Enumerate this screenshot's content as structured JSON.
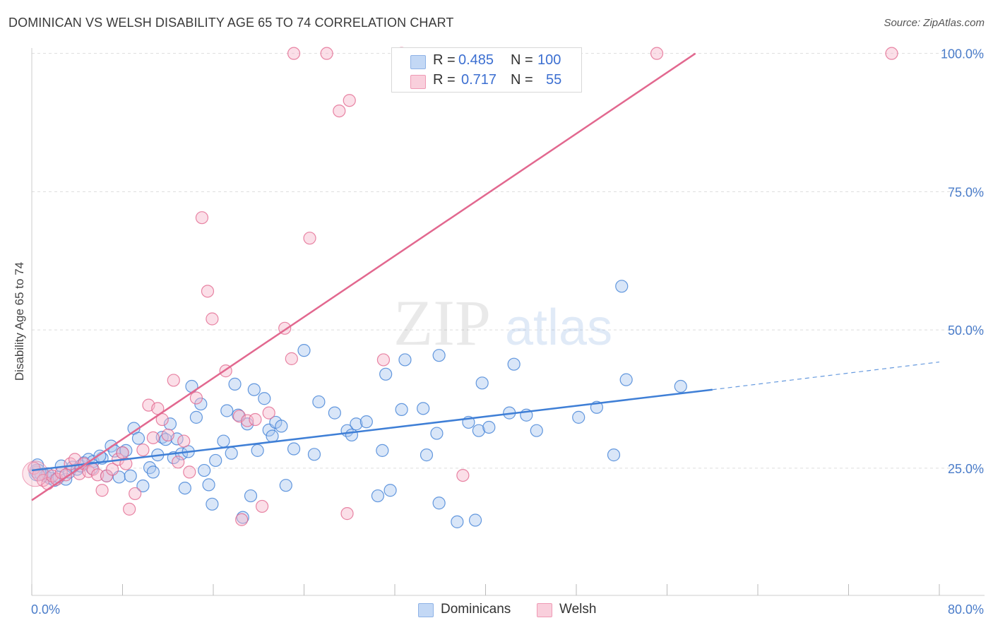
{
  "title": "DOMINICAN VS WELSH DISABILITY AGE 65 TO 74 CORRELATION CHART",
  "source": "Source: ZipAtlas.com",
  "watermark": {
    "zip": "ZIP",
    "atlas": "atlas"
  },
  "colors": {
    "blue": "#3f7fd6",
    "blue_fill": "#aac8f0",
    "pink": "#e2688f",
    "pink_fill": "#f6b9cc",
    "tick": "#4a7cc9",
    "grid": "#dddddd"
  },
  "legend": {
    "rows": [
      {
        "r_label": "R =",
        "r_value": "0.485",
        "n_label": "N =",
        "n_value": "100"
      },
      {
        "r_label": "R =",
        "r_value": "0.717",
        "n_label": "N =",
        "n_value": "55"
      }
    ]
  },
  "bottom_legend": {
    "dominicans": "Dominicans",
    "welsh": "Welsh"
  },
  "chart_data": {
    "type": "scatter",
    "title": "DOMINICAN VS WELSH DISABILITY AGE 65 TO 74 CORRELATION CHART",
    "xlabel": "",
    "ylabel": "Disability Age 65 to 74",
    "xlim": [
      0,
      80
    ],
    "ylim": [
      2,
      102
    ],
    "x_tick_labels": [
      "0.0%",
      "80.0%"
    ],
    "y_ticks": [
      25,
      50,
      75,
      100
    ],
    "y_tick_labels": [
      "25.0%",
      "50.0%",
      "75.0%",
      "100.0%"
    ],
    "grid": true,
    "legend_position": "top-center",
    "series": [
      {
        "name": "Dominicans",
        "color": "#3f7fd6",
        "r": 0.485,
        "n": 100,
        "trend": {
          "x": [
            0,
            60
          ],
          "y": [
            24.6,
            39.2
          ],
          "dashed_to": [
            80,
            44.2
          ]
        },
        "points": [
          [
            0.4,
            24.3
          ],
          [
            0.8,
            23.9
          ],
          [
            1.2,
            23.6
          ],
          [
            1.6,
            23.2
          ],
          [
            2.0,
            22.8
          ],
          [
            2.4,
            23.4
          ],
          [
            2.6,
            25.4
          ],
          [
            3.0,
            23.0
          ],
          [
            3.3,
            24.3
          ],
          [
            3.6,
            25.2
          ],
          [
            4.0,
            24.8
          ],
          [
            4.3,
            25.4
          ],
          [
            4.6,
            26.0
          ],
          [
            5.0,
            26.6
          ],
          [
            5.4,
            26.2
          ],
          [
            6.2,
            26.8
          ],
          [
            6.6,
            23.6
          ],
          [
            7.0,
            29.0
          ],
          [
            7.3,
            28.1
          ],
          [
            7.7,
            23.4
          ],
          [
            8.0,
            27.8
          ],
          [
            8.3,
            28.2
          ],
          [
            8.7,
            23.6
          ],
          [
            9.0,
            32.2
          ],
          [
            9.4,
            30.4
          ],
          [
            9.8,
            21.8
          ],
          [
            10.4,
            25.1
          ],
          [
            10.7,
            24.3
          ],
          [
            11.1,
            27.4
          ],
          [
            11.5,
            30.6
          ],
          [
            11.8,
            30.2
          ],
          [
            12.2,
            33.0
          ],
          [
            12.5,
            26.9
          ],
          [
            12.8,
            30.3
          ],
          [
            13.2,
            27.6
          ],
          [
            13.5,
            21.4
          ],
          [
            13.8,
            28.0
          ],
          [
            14.1,
            39.8
          ],
          [
            14.5,
            34.2
          ],
          [
            14.9,
            36.6
          ],
          [
            15.2,
            24.6
          ],
          [
            15.6,
            22.0
          ],
          [
            15.9,
            18.5
          ],
          [
            16.2,
            26.4
          ],
          [
            16.9,
            29.9
          ],
          [
            17.2,
            35.4
          ],
          [
            17.6,
            27.7
          ],
          [
            17.9,
            40.2
          ],
          [
            18.2,
            34.6
          ],
          [
            18.6,
            16.1
          ],
          [
            19.0,
            33.0
          ],
          [
            19.3,
            20.0
          ],
          [
            19.6,
            39.2
          ],
          [
            19.9,
            28.2
          ],
          [
            20.5,
            37.6
          ],
          [
            20.9,
            31.9
          ],
          [
            21.2,
            30.8
          ],
          [
            21.5,
            33.3
          ],
          [
            22.0,
            32.6
          ],
          [
            22.4,
            21.9
          ],
          [
            23.1,
            28.5
          ],
          [
            24.0,
            46.3
          ],
          [
            24.9,
            27.5
          ],
          [
            25.3,
            37.0
          ],
          [
            26.7,
            35.0
          ],
          [
            27.8,
            31.8
          ],
          [
            28.2,
            31.0
          ],
          [
            28.6,
            33.0
          ],
          [
            29.5,
            33.4
          ],
          [
            30.5,
            20.0
          ],
          [
            30.9,
            28.2
          ],
          [
            31.2,
            42.0
          ],
          [
            31.6,
            21.0
          ],
          [
            32.6,
            35.6
          ],
          [
            32.9,
            44.6
          ],
          [
            34.5,
            35.8
          ],
          [
            34.8,
            27.4
          ],
          [
            35.7,
            31.3
          ],
          [
            35.9,
            45.4
          ],
          [
            35.9,
            18.7
          ],
          [
            37.5,
            15.3
          ],
          [
            38.5,
            33.3
          ],
          [
            39.1,
            15.6
          ],
          [
            39.4,
            31.8
          ],
          [
            39.7,
            40.4
          ],
          [
            40.3,
            32.4
          ],
          [
            42.1,
            35.0
          ],
          [
            42.5,
            43.8
          ],
          [
            43.6,
            34.6
          ],
          [
            44.5,
            31.8
          ],
          [
            48.2,
            34.2
          ],
          [
            49.8,
            36.0
          ],
          [
            51.3,
            27.4
          ],
          [
            52.0,
            57.9
          ],
          [
            52.4,
            41.0
          ],
          [
            57.2,
            39.8
          ],
          [
            0.5,
            25.6
          ],
          [
            1.4,
            24.0
          ],
          [
            5.3,
            25.0
          ],
          [
            6.0,
            27.2
          ]
        ]
      },
      {
        "name": "Welsh",
        "color": "#e2688f",
        "r": 0.717,
        "n": 55,
        "trend": {
          "x": [
            0,
            58.5
          ],
          "y": [
            19.2,
            100.0
          ]
        },
        "points": [
          [
            0.2,
            25.0
          ],
          [
            0.6,
            23.8
          ],
          [
            1.0,
            22.8
          ],
          [
            1.4,
            22.2
          ],
          [
            1.8,
            23.6
          ],
          [
            2.2,
            23.0
          ],
          [
            2.6,
            24.2
          ],
          [
            3.0,
            23.8
          ],
          [
            3.4,
            25.8
          ],
          [
            3.8,
            26.6
          ],
          [
            4.2,
            24.0
          ],
          [
            4.6,
            25.8
          ],
          [
            5.0,
            24.4
          ],
          [
            5.4,
            24.8
          ],
          [
            5.8,
            23.8
          ],
          [
            6.2,
            21.0
          ],
          [
            6.6,
            23.6
          ],
          [
            7.1,
            24.8
          ],
          [
            7.6,
            26.6
          ],
          [
            8.0,
            27.8
          ],
          [
            8.3,
            25.8
          ],
          [
            8.6,
            17.6
          ],
          [
            9.1,
            20.4
          ],
          [
            9.8,
            28.3
          ],
          [
            10.3,
            36.4
          ],
          [
            10.7,
            30.5
          ],
          [
            11.1,
            35.8
          ],
          [
            11.5,
            33.8
          ],
          [
            12.0,
            31.0
          ],
          [
            12.5,
            40.9
          ],
          [
            12.9,
            26.1
          ],
          [
            13.4,
            29.9
          ],
          [
            13.9,
            24.3
          ],
          [
            14.5,
            37.7
          ],
          [
            15.0,
            70.3
          ],
          [
            15.5,
            57.0
          ],
          [
            15.9,
            52.0
          ],
          [
            17.1,
            42.6
          ],
          [
            18.3,
            34.4
          ],
          [
            18.5,
            15.7
          ],
          [
            19.0,
            33.6
          ],
          [
            19.7,
            33.8
          ],
          [
            20.3,
            18.1
          ],
          [
            20.9,
            35.0
          ],
          [
            22.3,
            50.3
          ],
          [
            22.9,
            44.8
          ],
          [
            23.1,
            100.0
          ],
          [
            24.5,
            66.6
          ],
          [
            26.0,
            100.0
          ],
          [
            27.1,
            89.6
          ],
          [
            27.8,
            16.8
          ],
          [
            28.0,
            91.5
          ],
          [
            31.0,
            44.6
          ],
          [
            38.0,
            23.7
          ],
          [
            55.1,
            100.0
          ]
        ]
      }
    ],
    "extra_pink_points": [
      [
        75.8,
        100.0
      ],
      [
        32.6,
        100.0
      ]
    ]
  }
}
